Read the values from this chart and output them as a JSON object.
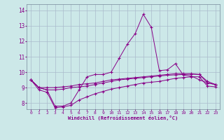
{
  "xlabel": "Windchill (Refroidissement éolien,°C)",
  "bg_color": "#cce8e8",
  "line_color": "#880088",
  "grid_color": "#aabbcc",
  "xlim": [
    -0.5,
    23.5
  ],
  "ylim": [
    7.6,
    14.4
  ],
  "xticks": [
    0,
    1,
    2,
    3,
    4,
    5,
    6,
    7,
    8,
    9,
    10,
    11,
    12,
    13,
    14,
    15,
    16,
    17,
    18,
    19,
    20,
    21,
    22,
    23
  ],
  "yticks": [
    8,
    9,
    10,
    11,
    12,
    13,
    14
  ],
  "series": {
    "spike": [
      9.5,
      9.0,
      8.85,
      7.8,
      7.8,
      8.0,
      8.85,
      9.7,
      9.85,
      9.85,
      10.0,
      10.9,
      11.8,
      12.5,
      13.75,
      12.9,
      10.1,
      10.15,
      10.55,
      9.8,
      9.75,
      9.5,
      9.3,
      9.2
    ],
    "flat_top": [
      9.5,
      9.0,
      9.0,
      9.0,
      9.05,
      9.1,
      9.2,
      9.25,
      9.3,
      9.4,
      9.5,
      9.55,
      9.6,
      9.65,
      9.7,
      9.75,
      9.8,
      9.85,
      9.9,
      9.9,
      9.9,
      9.85,
      9.4,
      9.2
    ],
    "flat_mid": [
      9.5,
      9.0,
      8.85,
      8.85,
      8.9,
      9.0,
      9.05,
      9.1,
      9.2,
      9.3,
      9.4,
      9.5,
      9.55,
      9.6,
      9.65,
      9.7,
      9.75,
      9.8,
      9.82,
      9.85,
      9.87,
      9.85,
      9.3,
      9.2
    ],
    "lower": [
      9.5,
      8.85,
      8.7,
      7.7,
      7.75,
      7.85,
      8.2,
      8.4,
      8.6,
      8.75,
      8.9,
      9.0,
      9.1,
      9.2,
      9.3,
      9.35,
      9.4,
      9.5,
      9.6,
      9.65,
      9.7,
      9.7,
      9.1,
      9.05
    ]
  }
}
